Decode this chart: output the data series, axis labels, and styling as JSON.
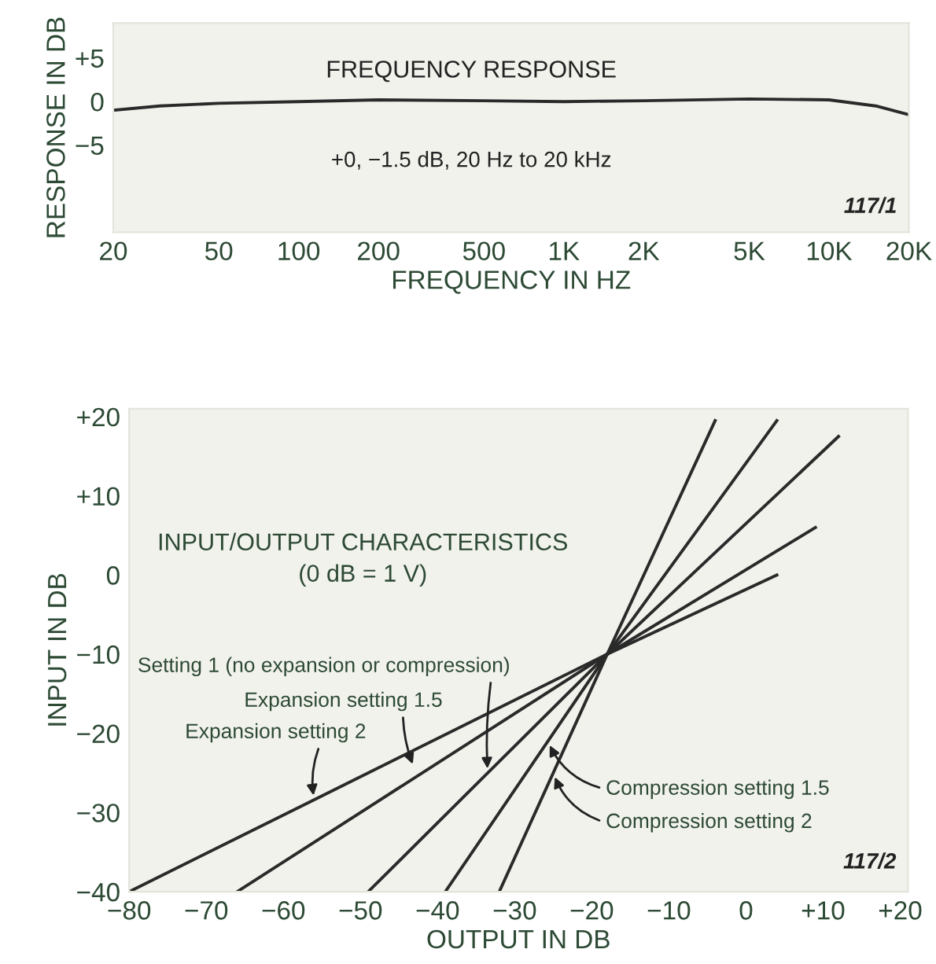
{
  "chart_data": [
    {
      "type": "line",
      "title": "FREQUENCY RESPONSE",
      "xlabel": "FREQUENCY IN HZ",
      "ylabel": "RESPONSE IN DB",
      "log": "x",
      "annotations": [
        "+0, −1.5 dB, 20 Hz to 20 kHz",
        "117/1"
      ],
      "series": [
        {
          "color": "#2a2a2a",
          "x": [
            20,
            30,
            50,
            100,
            200,
            500,
            1000,
            2000,
            5000,
            10000,
            15000,
            20000
          ],
          "values": [
            -1,
            -0.5,
            -0.2,
            0,
            0.2,
            0.1,
            0,
            0.1,
            0.3,
            0.2,
            -0.5,
            -1.5
          ]
        }
      ],
      "xlim": [
        20,
        20000
      ],
      "ylim": [
        -15,
        9
      ],
      "xticks": [
        20,
        50,
        100,
        200,
        500,
        {
          "value": 1000,
          "label": "1K"
        },
        {
          "value": 2000,
          "label": "2K"
        },
        {
          "value": 5000,
          "label": "5K"
        },
        {
          "value": 10000,
          "label": "10K"
        },
        {
          "value": 20000,
          "label": "20K"
        }
      ],
      "yticks": [
        {
          "value": 5,
          "label": "+5"
        },
        0,
        {
          "value": -5,
          "label": "−5"
        }
      ],
      "grid": false,
      "legend": false,
      "marker": "none",
      "line_style": "solid"
    },
    {
      "type": "line",
      "title": "INPUT/OUTPUT CHARACTERISTICS",
      "subtitle": "(0 dB = 1 V)",
      "xlabel": "OUTPUT IN DB",
      "ylabel": "INPUT IN DB",
      "annotations": [
        {
          "text": "Expansion setting 2",
          "x": -56,
          "y": -28.4
        },
        {
          "text": "Expansion setting 1.5",
          "x": -43,
          "y": -24.4
        },
        {
          "text": "Setting 1 (no expansion or compression)",
          "x": -33.5,
          "y": -25
        },
        {
          "text": "Compression setting 1.5",
          "x": -25.7,
          "y": -21
        },
        {
          "text": "Compression setting 2",
          "x": -25,
          "y": -25
        },
        "117/2"
      ],
      "series": [
        {
          "color": "#2a2a2a",
          "x": [
            -80,
            -18,
            4
          ],
          "values": [
            -40,
            -10,
            0
          ]
        },
        {
          "color": "#2a2a2a",
          "x": [
            -66,
            -18,
            9
          ],
          "values": [
            -40,
            -10,
            6
          ]
        },
        {
          "color": "#2a2a2a",
          "x": [
            -49,
            -18,
            12
          ],
          "values": [
            -40,
            -10,
            17.5
          ]
        },
        {
          "color": "#2a2a2a",
          "x": [
            -39,
            -18,
            4
          ],
          "values": [
            -40,
            -10,
            19.5
          ]
        },
        {
          "color": "#2a2a2a",
          "x": [
            -32,
            -18,
            -4
          ],
          "values": [
            -40,
            -10,
            19.5
          ]
        }
      ],
      "xlim": [
        -80,
        21
      ],
      "ylim": [
        -40,
        21
      ],
      "xticks": [
        {
          "value": -80,
          "label": "−80"
        },
        {
          "value": -70,
          "label": "−70"
        },
        {
          "value": -60,
          "label": "−60"
        },
        {
          "value": -50,
          "label": "−50"
        },
        {
          "value": -40,
          "label": "−40"
        },
        {
          "value": -30,
          "label": "−30"
        },
        {
          "value": -20,
          "label": "−20"
        },
        {
          "value": -10,
          "label": "−10"
        },
        0,
        {
          "value": 10,
          "label": "+10"
        },
        {
          "value": 20,
          "label": "+20"
        }
      ],
      "yticks": [
        {
          "value": 20,
          "label": "+20"
        },
        {
          "value": 10,
          "label": "+10"
        },
        0,
        {
          "value": -10,
          "label": "−10"
        },
        {
          "value": -20,
          "label": "−20"
        },
        {
          "value": -30,
          "label": "−30"
        },
        {
          "value": -40,
          "label": "−40"
        }
      ],
      "grid": false,
      "legend": false,
      "marker": "none",
      "line_style": "solid"
    }
  ]
}
